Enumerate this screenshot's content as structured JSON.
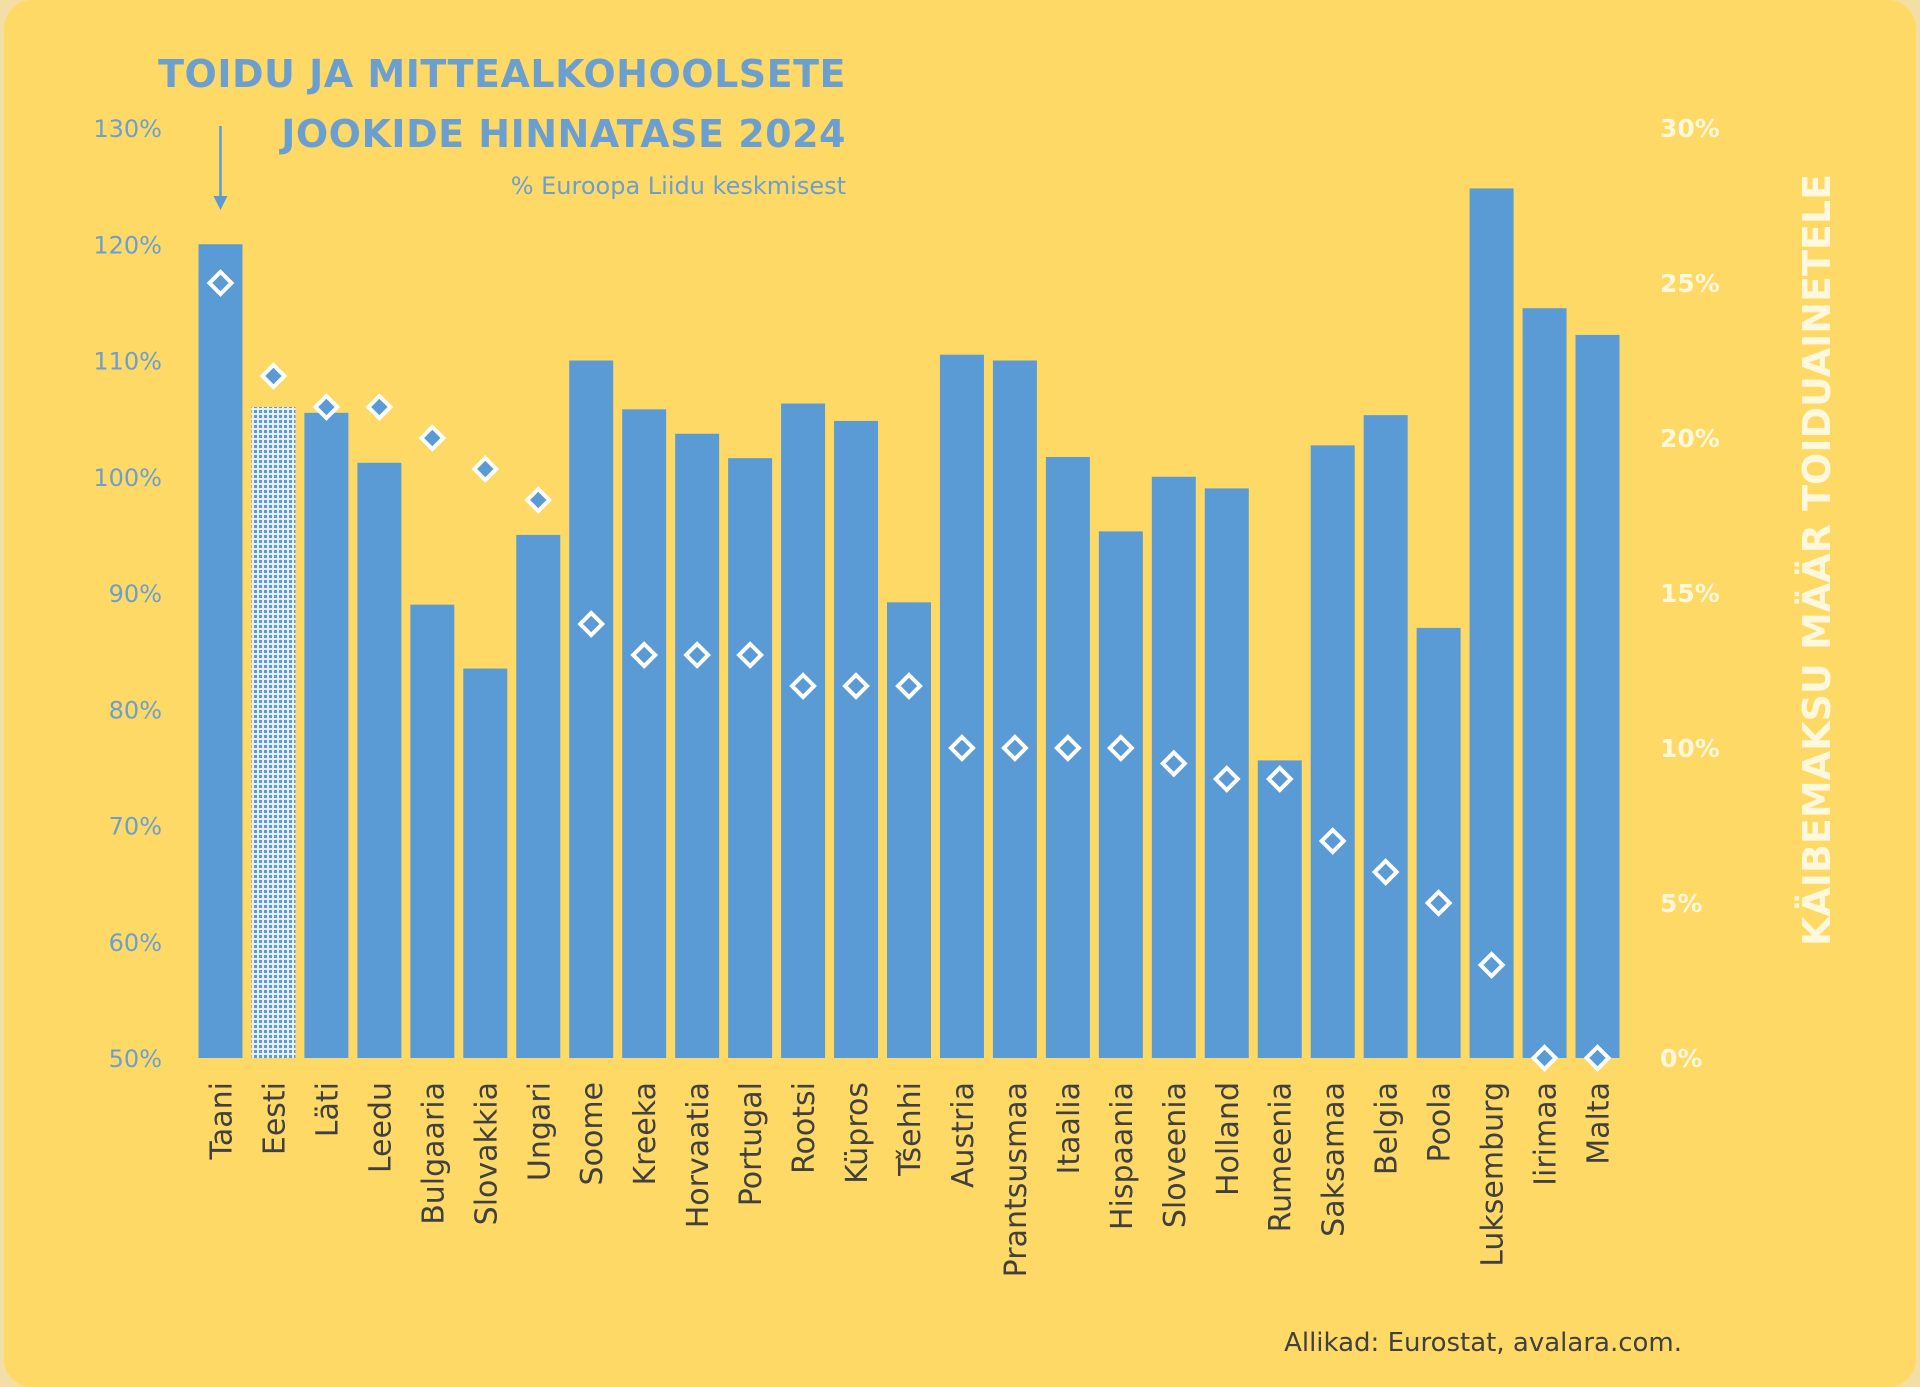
{
  "title": {
    "line1": "TOIDU JA MITTEALKOHOOLSETE",
    "line2": "JOOKIDE HINNATASE 2024",
    "subtitle": "% Euroopa Liidu keskmisest"
  },
  "source": "Allikad: Eurostat, avalara.com.",
  "colors": {
    "background": "#ffd966",
    "bar": "#5b9bd5",
    "highlight_bar_pattern": "#5b9bd5",
    "marker_fill": "#5b9bd5",
    "marker_stroke": "#ffffff",
    "left_axis_text": "#6a9fcf",
    "right_axis_text": "#fff8dc",
    "category_text": "#404040"
  },
  "chart_data": {
    "type": "bar",
    "categories": [
      "Taani",
      "Eesti",
      "Läti",
      "Leedu",
      "Bulgaaria",
      "Slovakkia",
      "Ungari",
      "Soome",
      "Kreeka",
      "Horvaatia",
      "Portugal",
      "Rootsi",
      "Küpros",
      "Tšehhi",
      "Austria",
      "Prantsusmaa",
      "Itaalia",
      "Hispaania",
      "Sloveenia",
      "Holland",
      "Rumeenia",
      "Saksamaa",
      "Belgia",
      "Poola",
      "Luksemburg",
      "Iirimaa",
      "Malta"
    ],
    "highlight_category": "Eesti",
    "annotation_arrow_category": "Taani",
    "series": [
      {
        "axis": "left",
        "kind": "bar",
        "values": [
          120,
          106,
          105.5,
          101.2,
          89,
          83.5,
          95,
          110,
          105.8,
          103.7,
          101.6,
          106.3,
          104.8,
          89.2,
          110.5,
          110.0,
          101.7,
          95.3,
          100.0,
          99.0,
          75.6,
          102.7,
          105.3,
          87.0,
          124.8,
          114.5,
          112.2
        ]
      },
      {
        "axis": "right",
        "kind": "marker",
        "values": [
          25,
          22,
          21,
          21,
          20,
          19,
          18,
          14,
          13,
          13,
          13,
          12,
          12,
          12,
          10,
          10,
          10,
          10,
          9.5,
          9,
          9,
          7,
          6,
          5,
          3,
          0,
          0
        ]
      }
    ],
    "y_left": {
      "min": 50,
      "max": 130,
      "step": 10,
      "tick_labels": [
        "50%",
        "60%",
        "70%",
        "80%",
        "90%",
        "100%",
        "110%",
        "120%",
        "130%"
      ]
    },
    "y_right": {
      "min": 0,
      "max": 30,
      "step": 5,
      "label": "KÄIBEMAKSU MÄÄR TOIDUAINETELE",
      "tick_labels": [
        "0%",
        "5%",
        "10%",
        "15%",
        "20%",
        "25%",
        "30%"
      ]
    },
    "grid": false,
    "legend": "none"
  }
}
